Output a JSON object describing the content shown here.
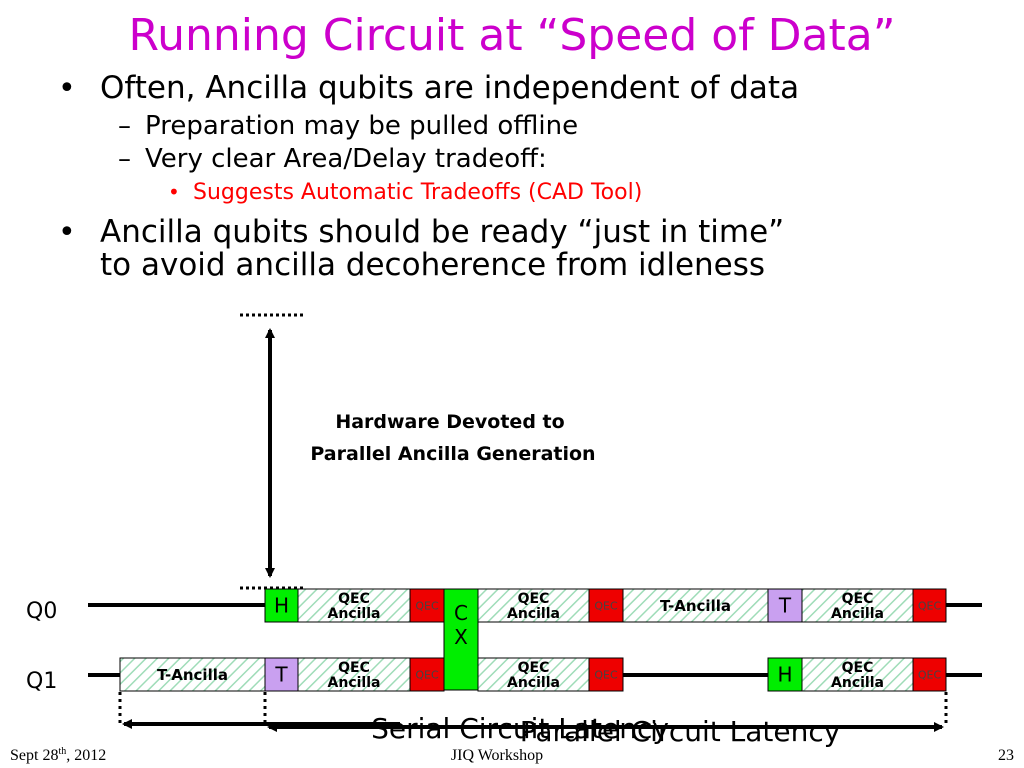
{
  "title": "Running Circuit at “Speed of Data”",
  "bullets": [
    {
      "text": "Often, Ancilla qubits are independent of data",
      "subpoints": [
        {
          "text": "Preparation may be pulled offline"
        },
        {
          "text": "Very clear Area/Delay tradeoff:",
          "subpoints": [
            {
              "text": "Suggests Automatic Tradeoffs (CAD Tool)"
            }
          ]
        }
      ]
    },
    {
      "lines": [
        "Ancilla qubits should be ready “just in time”",
        "to avoid ancilla decoherence from idleness"
      ]
    }
  ],
  "diagram": {
    "annotation": [
      "Hardware Devoted to",
      "Parallel Ancilla Generation"
    ],
    "qubits": [
      "Q0",
      "Q1"
    ],
    "gates": [
      {
        "lines": [
          "H"
        ]
      },
      {
        "lines": [
          "QEC",
          "Ancilla"
        ]
      },
      {
        "lines": [
          "QEC"
        ]
      },
      {
        "lines": [
          "C",
          "X"
        ]
      },
      {
        "lines": [
          "QEC",
          "Ancilla"
        ]
      },
      {
        "lines": [
          "QEC"
        ]
      },
      {
        "lines": [
          "T-Ancilla"
        ]
      },
      {
        "lines": [
          "T"
        ]
      },
      {
        "lines": [
          "QEC",
          "Ancilla"
        ]
      },
      {
        "lines": [
          "QEC"
        ]
      },
      {
        "lines": [
          "T-Ancilla"
        ]
      },
      {
        "lines": [
          "T"
        ]
      },
      {
        "lines": [
          "QEC",
          "Ancilla"
        ]
      },
      {
        "lines": [
          "QEC"
        ]
      },
      {
        "lines": [
          "QEC",
          "Ancilla"
        ]
      },
      {
        "lines": [
          "QEC"
        ]
      },
      {
        "lines": [
          "H"
        ]
      },
      {
        "lines": [
          "QEC",
          "Ancilla"
        ]
      },
      {
        "lines": [
          "QEC"
        ]
      }
    ],
    "latencies": [
      "Serial Circuit Latency",
      "Parallel Circuit Latency"
    ]
  },
  "footer": {
    "date": {
      "text": "Sept 28",
      "superscript": "th",
      "year": ", 2012"
    },
    "event": "JIQ Workshop",
    "page": "23"
  }
}
